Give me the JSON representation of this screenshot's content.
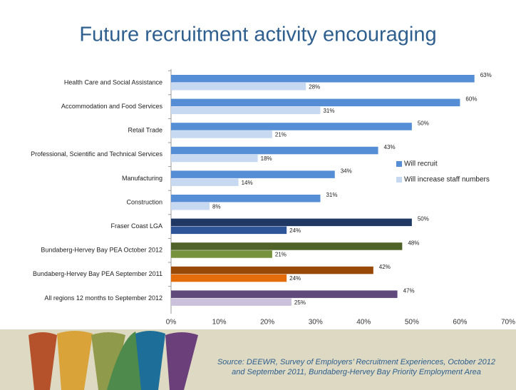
{
  "chart_data": {
    "type": "bar",
    "orientation": "horizontal",
    "title": "Future recruitment activity encouraging",
    "categories": [
      "Health Care and Social Assistance",
      "Accommodation and Food Services",
      "Retail Trade",
      "Professional, Scientific and Technical Services",
      "Manufacturing",
      "Construction",
      "Fraser Coast LGA",
      "Bundaberg-Hervey Bay PEA October 2012",
      "Bundaberg-Hervey Bay PEA September 2011",
      "All regions 12 months to September 2012"
    ],
    "series": [
      {
        "name": "Will recruit",
        "color": "#558ed5",
        "colors": [
          "#558ed5",
          "#558ed5",
          "#558ed5",
          "#558ed5",
          "#558ed5",
          "#558ed5",
          "#1f3864",
          "#4f6228",
          "#984807",
          "#604a7b"
        ],
        "values": [
          63,
          60,
          50,
          43,
          34,
          31,
          50,
          48,
          42,
          47
        ],
        "value_labels": [
          "63%",
          "60%",
          "50%",
          "43%",
          "34%",
          "31%",
          "50%",
          "48%",
          "42%",
          "47%"
        ]
      },
      {
        "name": "Will increase staff numbers",
        "color": "#c6d9f1",
        "colors": [
          "#c6d9f1",
          "#c6d9f1",
          "#c6d9f1",
          "#c6d9f1",
          "#c6d9f1",
          "#c6d9f1",
          "#2e5597",
          "#76923c",
          "#e46c0a",
          "#ccc1da"
        ],
        "values": [
          28,
          31,
          21,
          18,
          14,
          8,
          24,
          21,
          24,
          25
        ],
        "value_labels": [
          "28%",
          "31%",
          "21%",
          "18%",
          "14%",
          "8%",
          "24%",
          "21%",
          "24%",
          "25%"
        ]
      }
    ],
    "xlim": [
      0,
      70
    ],
    "xticks": [
      {
        "value": 0,
        "label": "0%"
      },
      {
        "value": 10,
        "label": "10%"
      },
      {
        "value": 20,
        "label": "20%"
      },
      {
        "value": 30,
        "label": "30%"
      },
      {
        "value": 40,
        "label": "40%"
      },
      {
        "value": 50,
        "label": "50%"
      },
      {
        "value": 60,
        "label": "60%"
      },
      {
        "value": 70,
        "label": "70%"
      }
    ],
    "legend": "right",
    "source": [
      "Source: DEEWR, Survey of Employers’ Recruitment Experiences, October 2012",
      "and September 2011, Bundaberg-Hervey Bay Priority Employment Area"
    ]
  }
}
